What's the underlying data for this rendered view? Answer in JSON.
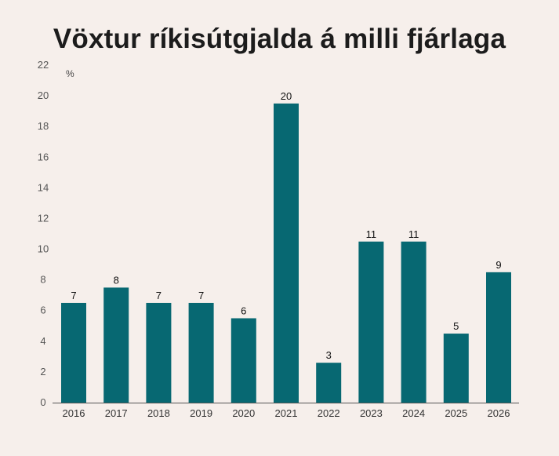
{
  "colors": {
    "bar": "#076872",
    "background": "#f6efeb",
    "axis": "#555555"
  },
  "chart_data": {
    "type": "bar",
    "title": "Vöxtur ríkisútgjalda á milli fjárlaga",
    "ylabel": "%",
    "xlabel": "",
    "ylim": [
      0,
      22
    ],
    "yticks": [
      0,
      2,
      4,
      6,
      8,
      10,
      12,
      14,
      16,
      18,
      20,
      22
    ],
    "categories": [
      "2016",
      "2017",
      "2018",
      "2019",
      "2020",
      "2021",
      "2022",
      "2023",
      "2024",
      "2025",
      "2026"
    ],
    "values": [
      6.5,
      7.5,
      6.5,
      6.5,
      5.5,
      19.5,
      2.6,
      10.5,
      10.5,
      4.5,
      8.5
    ],
    "data_labels": [
      "7",
      "8",
      "7",
      "7",
      "6",
      "20",
      "3",
      "11",
      "11",
      "5",
      "9"
    ],
    "grid": false,
    "legend": "none"
  }
}
